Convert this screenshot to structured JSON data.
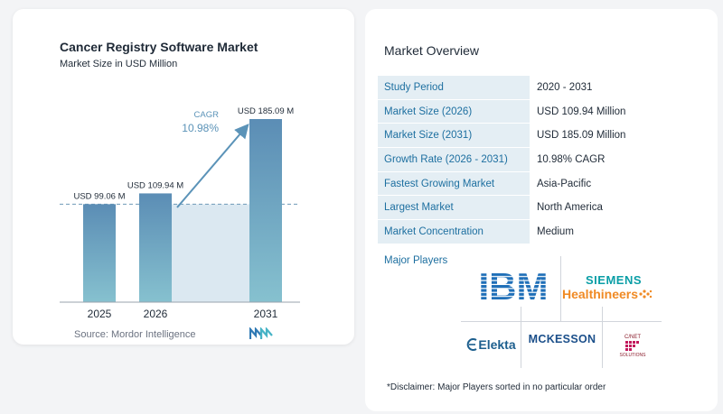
{
  "chart_data": {
    "type": "bar",
    "title": "Cancer Registry Software Market",
    "subtitle": "Market Size in USD Million",
    "categories": [
      "2025",
      "2026",
      "2031"
    ],
    "values": [
      99.06,
      109.94,
      185.09
    ],
    "data_labels": [
      "USD 99.06 M",
      "USD 109.94 M",
      "USD 185.09 M"
    ],
    "ylim": [
      0,
      185.09
    ],
    "grid": false,
    "reference_line": 99.06,
    "cagr": {
      "label": "CAGR",
      "value": "10.98%"
    },
    "colors": {
      "bar_top": "#5b8db5",
      "bar_bottom": "#86c1cf",
      "arrow": "#5b93b8",
      "band": "#dbe8f1",
      "dash": "#6f9ab8"
    }
  },
  "source": "Source:  Mordor Intelligence",
  "overview": {
    "title": "Market Overview",
    "rows": [
      {
        "key": "Study Period",
        "value": "2020 - 2031"
      },
      {
        "key": "Market Size (2026)",
        "value": "USD 109.94 Million"
      },
      {
        "key": "Market Size (2031)",
        "value": "USD 185.09 Million"
      },
      {
        "key": "Growth Rate (2026 - 2031)",
        "value": "10.98% CAGR"
      },
      {
        "key": "Fastest Growing Market",
        "value": "Asia-Pacific"
      },
      {
        "key": "Largest Market",
        "value": "North America"
      },
      {
        "key": "Market Concentration",
        "value": "Medium"
      }
    ]
  },
  "players": {
    "title": "Major Players",
    "ibm": "IBM",
    "siemens_top": "SIEMENS",
    "siemens_bottom": "Healthineers",
    "elekta": "Elekta",
    "mckesson": "MCKESSON",
    "cnet_top": "C/NET",
    "cnet_bottom": "SOLUTIONS"
  },
  "disclaimer": "*Disclaimer: Major Players sorted in no particular order"
}
